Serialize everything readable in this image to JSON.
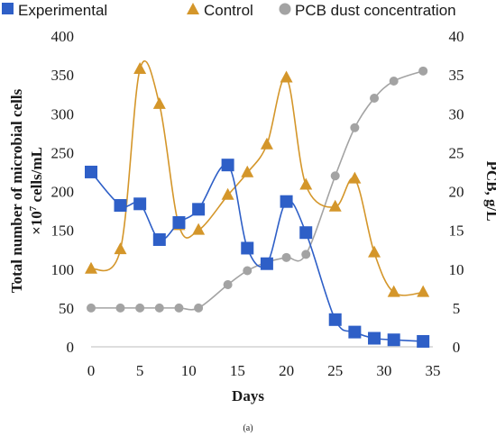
{
  "chart_data": {
    "type": "line",
    "xlabel": "Days",
    "ylabel_left_line1": "Total number of microbial cells",
    "ylabel_left_line2_prefix": "×10",
    "ylabel_left_line2_sup": "7",
    "ylabel_left_line2_suffix": " cells/mL",
    "ylabel_right": "PCB, g/L",
    "caption": "(a)",
    "xlim": [
      0,
      35
    ],
    "ylim_left": [
      0,
      400
    ],
    "ylim_right": [
      0,
      40
    ],
    "x_ticks": [
      "0",
      "5",
      "10",
      "15",
      "20",
      "25",
      "30",
      "35"
    ],
    "y_left_ticks": [
      "0",
      "50",
      "100",
      "150",
      "200",
      "250",
      "300",
      "350",
      "400"
    ],
    "y_right_ticks": [
      "0",
      "5",
      "10",
      "15",
      "20",
      "25",
      "30",
      "35",
      "40"
    ],
    "legend": [
      "Experimental",
      "Control",
      "PCB dust concentration"
    ],
    "series": [
      {
        "name": "Experimental",
        "color": "#2e5fc7",
        "marker": "square",
        "axis": "left",
        "x": [
          0,
          3,
          5,
          7,
          9,
          11,
          14,
          16,
          18,
          20,
          22,
          25,
          27,
          29,
          31,
          34
        ],
        "y": [
          225,
          182,
          184,
          138,
          160,
          177,
          234,
          127,
          107,
          187,
          147,
          35,
          19,
          11,
          9,
          7
        ]
      },
      {
        "name": "Control",
        "color": "#d4962a",
        "marker": "triangle",
        "axis": "left",
        "x": [
          0,
          3,
          5,
          7,
          9,
          11,
          14,
          16,
          18,
          20,
          22,
          25,
          27,
          29,
          31,
          34
        ],
        "y": [
          100,
          125,
          357,
          312,
          156,
          150,
          195,
          224,
          260,
          346,
          208,
          180,
          216,
          121,
          70,
          70
        ]
      },
      {
        "name": "PCB dust concentration",
        "color": "#a3a3a3",
        "marker": "circle",
        "axis": "right",
        "x": [
          0,
          3,
          5,
          7,
          9,
          11,
          14,
          16,
          18,
          20,
          22,
          25,
          27,
          29,
          31,
          34
        ],
        "y": [
          5,
          5,
          5,
          5,
          5,
          5,
          8,
          9.8,
          10.9,
          11.5,
          11.9,
          22,
          28.2,
          32,
          34.2,
          35.5
        ]
      }
    ]
  }
}
